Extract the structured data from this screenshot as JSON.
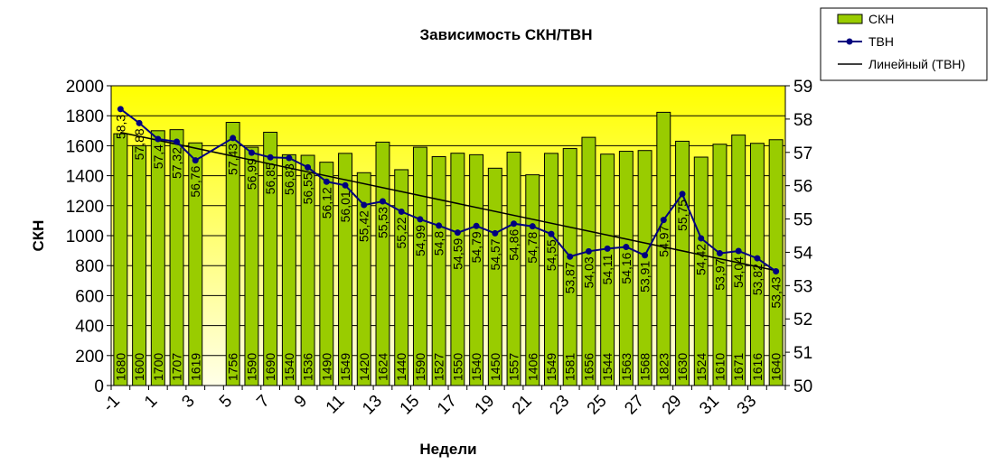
{
  "chart_data": {
    "type": "bar",
    "title": "Зависимость СКН/ТВН",
    "xlabel": "Недели",
    "ylabel": "СКН",
    "y2label": "",
    "xlim": [
      -1,
      34
    ],
    "ylim": [
      0,
      2000
    ],
    "y2lim": [
      50,
      59
    ],
    "x_ticks": [
      "-1",
      "1",
      "3",
      "5",
      "7",
      "9",
      "11",
      "13",
      "15",
      "17",
      "19",
      "21",
      "23",
      "25",
      "27",
      "29",
      "31",
      "33"
    ],
    "y_ticks": [
      "0",
      "200",
      "400",
      "600",
      "800",
      "1000",
      "1200",
      "1400",
      "1600",
      "1800",
      "2000"
    ],
    "y2_ticks": [
      "50",
      "51",
      "52",
      "53",
      "54",
      "55",
      "56",
      "57",
      "58",
      "59"
    ],
    "grid": true,
    "legend_position": "top-right",
    "colors": {
      "bar_fill": "#99cc00",
      "bar_stroke": "#000000",
      "line": "#000080",
      "trend": "#000000",
      "plot_top": "#ffff00",
      "plot_bottom": "#ffffe8"
    },
    "x": [
      -1,
      0,
      1,
      2,
      3,
      5,
      6,
      7,
      8,
      9,
      10,
      11,
      12,
      13,
      14,
      15,
      16,
      17,
      18,
      19,
      20,
      21,
      22,
      23,
      24,
      25,
      26,
      27,
      28,
      29,
      30,
      31,
      32,
      33,
      34
    ],
    "series": [
      {
        "name": "СКН",
        "type": "bar",
        "axis": "left",
        "values": [
          1680,
          1600,
          1700,
          1707,
          1619,
          1756,
          1590,
          1690,
          1540,
          1536,
          1490,
          1549,
          1420,
          1624,
          1440,
          1590,
          1527,
          1550,
          1540,
          1450,
          1557,
          1406,
          1549,
          1581,
          1656,
          1544,
          1563,
          1568,
          1823,
          1630,
          1524,
          1610,
          1671,
          1616,
          1640
        ],
        "labels": [
          "1680",
          "1600",
          "1700",
          "1707",
          "1619",
          "1756",
          "1590",
          "1690",
          "1540",
          "1536",
          "1490",
          "1549",
          "1420",
          "1624",
          "1440",
          "1590",
          "1527",
          "1550",
          "1540",
          "1450",
          "1557",
          "1406",
          "1549",
          "1581",
          "1656",
          "1544",
          "1563",
          "1568",
          "1823",
          "1630",
          "1524",
          "1610",
          "1671",
          "1616",
          "1640"
        ]
      },
      {
        "name": "ТВН",
        "type": "line",
        "axis": "right",
        "values": [
          58.3,
          57.88,
          57.4,
          57.32,
          56.76,
          57.43,
          56.99,
          56.85,
          56.83,
          56.55,
          56.12,
          56.01,
          55.42,
          55.53,
          55.22,
          54.99,
          54.8,
          54.59,
          54.79,
          54.57,
          54.86,
          54.78,
          54.55,
          53.87,
          54.03,
          54.11,
          54.16,
          53.91,
          54.97,
          55.75,
          54.42,
          53.97,
          54.04,
          53.82,
          53.43
        ],
        "labels": [
          "58,3",
          "57,88",
          "57,4",
          "57,32",
          "56,76",
          "57,43",
          "56,99",
          "56,85",
          "56,83",
          "56,55",
          "56,12",
          "56,01",
          "55,42",
          "55,53",
          "55,22",
          "54,99",
          "54,8",
          "54,59",
          "54,79",
          "54,57",
          "54,86",
          "54,78",
          "54,55",
          "53,87",
          "54,03",
          "54,11",
          "54,16",
          "53,91",
          "54,97",
          "55,75",
          "54,42",
          "53,97",
          "54,04",
          "53,82",
          "53,43"
        ]
      },
      {
        "name": "Линейный (ТВН)",
        "type": "trendline",
        "axis": "right",
        "start": [
          -1,
          57.6
        ],
        "end": [
          34,
          53.45
        ]
      }
    ]
  }
}
